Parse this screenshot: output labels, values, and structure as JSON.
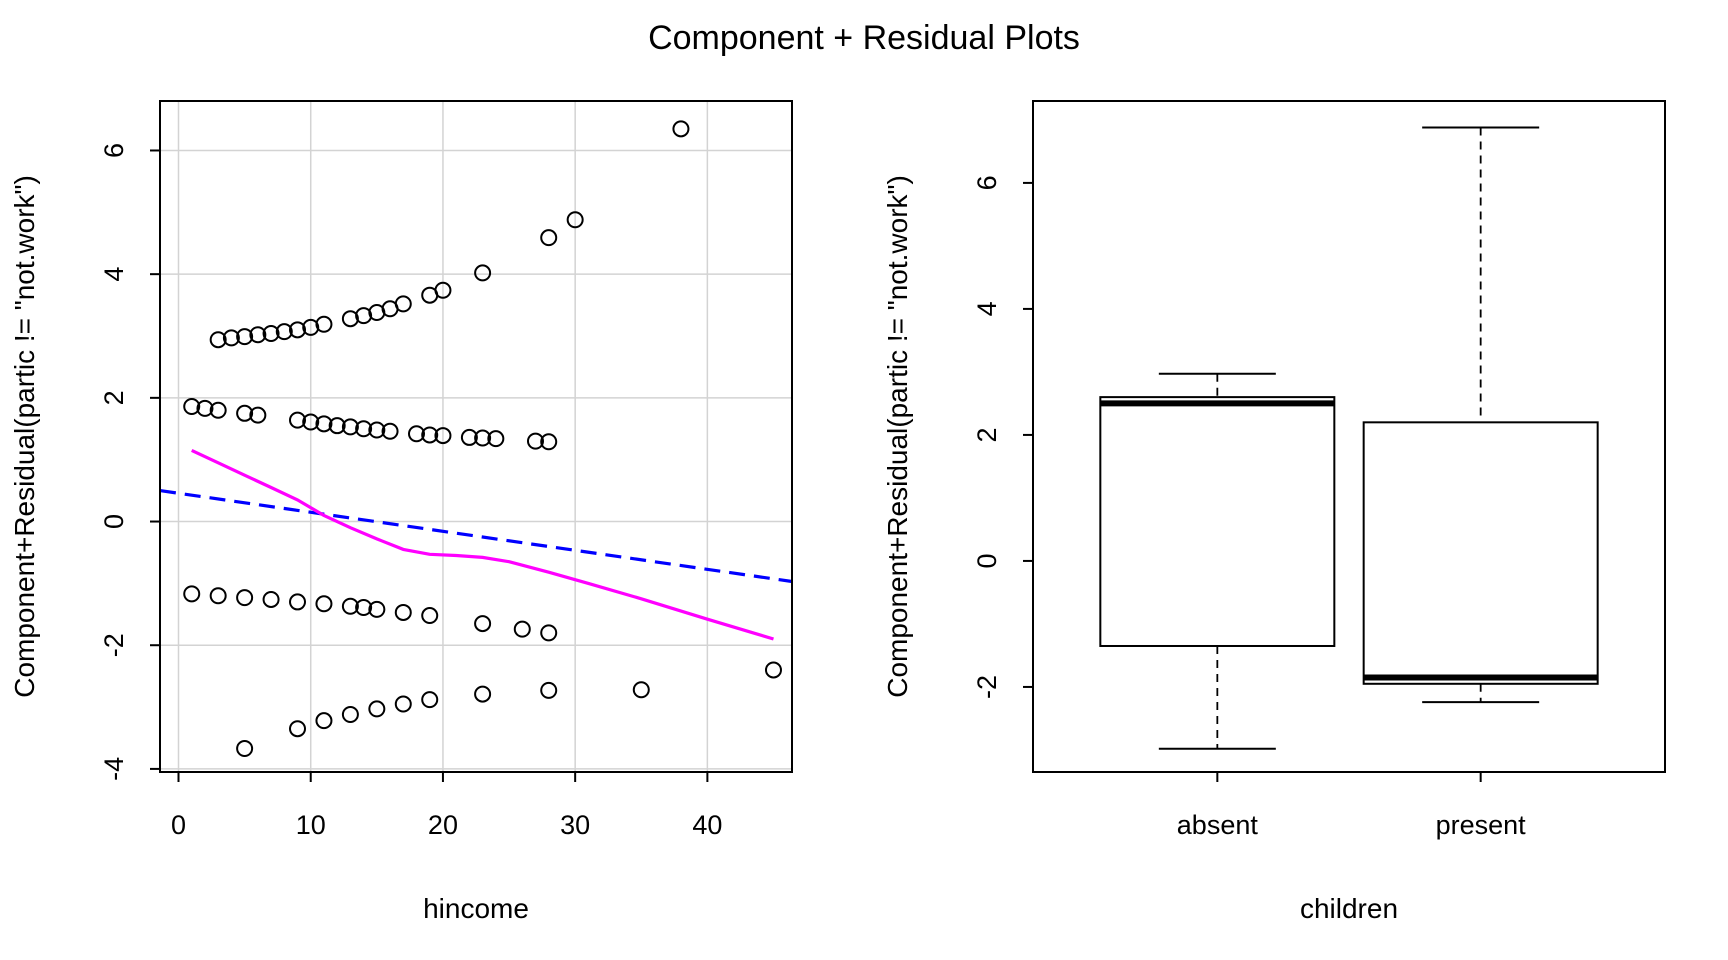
{
  "title": "Component + Residual Plots",
  "chart_data": [
    {
      "type": "scatter",
      "xlabel": "hincome",
      "ylabel": "Component+Residual(partic != \"not.work\")",
      "xlim": [
        -1.4,
        46.4
      ],
      "ylim": [
        -4.05,
        6.8
      ],
      "xticks": [
        "0",
        "10",
        "20",
        "30",
        "40"
      ],
      "yticks": [
        "-4",
        "-2",
        "0",
        "2",
        "4",
        "6"
      ],
      "grid": true,
      "points": [
        [
          3,
          2.94
        ],
        [
          4,
          2.97
        ],
        [
          5,
          2.99
        ],
        [
          6,
          3.02
        ],
        [
          7,
          3.04
        ],
        [
          8,
          3.07
        ],
        [
          9,
          3.1
        ],
        [
          10,
          3.14
        ],
        [
          11,
          3.19
        ],
        [
          13,
          3.28
        ],
        [
          14,
          3.33
        ],
        [
          15,
          3.38
        ],
        [
          16,
          3.44
        ],
        [
          17,
          3.52
        ],
        [
          19,
          3.66
        ],
        [
          20,
          3.74
        ],
        [
          23,
          4.02
        ],
        [
          28,
          4.59
        ],
        [
          30,
          4.88
        ],
        [
          38,
          6.35
        ],
        [
          1,
          1.86
        ],
        [
          2,
          1.83
        ],
        [
          3,
          1.8
        ],
        [
          5,
          1.75
        ],
        [
          6,
          1.72
        ],
        [
          9,
          1.64
        ],
        [
          10,
          1.61
        ],
        [
          11,
          1.58
        ],
        [
          12,
          1.55
        ],
        [
          13,
          1.53
        ],
        [
          14,
          1.5
        ],
        [
          15,
          1.48
        ],
        [
          16,
          1.46
        ],
        [
          18,
          1.42
        ],
        [
          19,
          1.4
        ],
        [
          20,
          1.39
        ],
        [
          22,
          1.36
        ],
        [
          23,
          1.35
        ],
        [
          24,
          1.34
        ],
        [
          27,
          1.3
        ],
        [
          28,
          1.29
        ],
        [
          1,
          -1.17
        ],
        [
          3,
          -1.2
        ],
        [
          5,
          -1.23
        ],
        [
          7,
          -1.26
        ],
        [
          9,
          -1.3
        ],
        [
          11,
          -1.33
        ],
        [
          13,
          -1.37
        ],
        [
          14,
          -1.39
        ],
        [
          15,
          -1.42
        ],
        [
          17,
          -1.47
        ],
        [
          19,
          -1.52
        ],
        [
          23,
          -1.65
        ],
        [
          26,
          -1.74
        ],
        [
          28,
          -1.8
        ],
        [
          5,
          -3.67
        ],
        [
          9,
          -3.35
        ],
        [
          11,
          -3.22
        ],
        [
          13,
          -3.12
        ],
        [
          15,
          -3.03
        ],
        [
          17,
          -2.95
        ],
        [
          19,
          -2.88
        ],
        [
          23,
          -2.79
        ],
        [
          28,
          -2.73
        ],
        [
          35,
          -2.72
        ],
        [
          45,
          -2.4
        ]
      ],
      "series": [
        {
          "name": "",
          "style": "dashed",
          "color": "#0000ff",
          "x": [
            -1.4,
            46.4
          ],
          "y": [
            0.5,
            -0.97
          ]
        },
        {
          "name": "",
          "style": "solid",
          "color": "#ff00ff",
          "x": [
            1,
            3,
            5,
            7,
            9,
            11,
            13,
            15,
            17,
            19,
            21,
            23,
            25,
            28,
            31,
            35,
            40,
            45
          ],
          "y": [
            1.15,
            0.95,
            0.75,
            0.55,
            0.35,
            0.1,
            -0.1,
            -0.28,
            -0.45,
            -0.53,
            -0.55,
            -0.58,
            -0.65,
            -0.82,
            -1.0,
            -1.25,
            -1.58,
            -1.9
          ]
        }
      ]
    },
    {
      "type": "box",
      "xlabel": "children",
      "ylabel": "Component+Residual(partic != \"not.work\")",
      "ylim": [
        -3.35,
        7.3
      ],
      "categories": [
        "absent",
        "present"
      ],
      "yticks": [
        "-2",
        "0",
        "2",
        "4",
        "6"
      ],
      "grid": false,
      "boxes": [
        {
          "category": "absent",
          "min": -2.98,
          "q1": -1.35,
          "median": 2.5,
          "q3": 2.6,
          "max": 2.97
        },
        {
          "category": "present",
          "min": -2.24,
          "q1": -1.95,
          "median": -1.85,
          "q3": 2.2,
          "max": 6.88
        }
      ]
    }
  ]
}
